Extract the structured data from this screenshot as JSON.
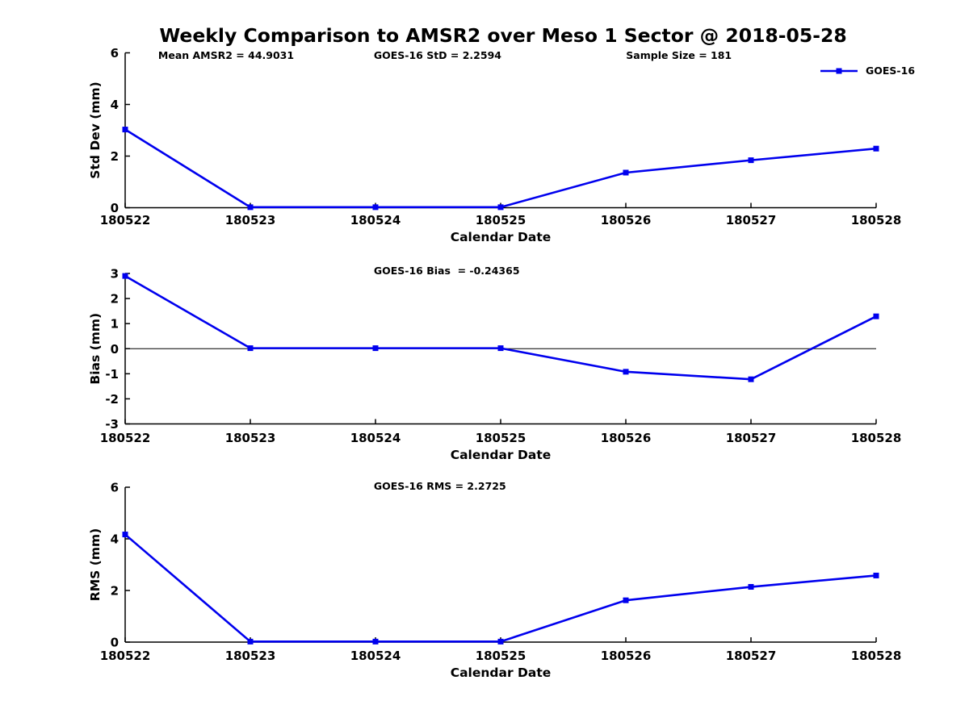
{
  "page": {
    "title": "Weekly Comparison to AMSR2 over Meso 1 Sector @ 2018-05-28",
    "background": "#ffffff"
  },
  "legend": {
    "label": "GOES-16"
  },
  "colors": {
    "series_blue": "#0000EE",
    "axis_black": "#000000",
    "text_black": "#000000",
    "zero_line_black": "#000000"
  },
  "chart_data": [
    {
      "type": "line",
      "title": "",
      "xlabel": "Calendar Date",
      "ylabel": "Std Dev (mm)",
      "categories": [
        "180522",
        "180523",
        "180524",
        "180525",
        "180526",
        "180527",
        "180528"
      ],
      "series": [
        {
          "name": "GOES-16",
          "values": [
            3.03,
            0.02,
            0.02,
            0.02,
            1.36,
            1.84,
            2.29
          ]
        }
      ],
      "ylim": [
        0,
        6
      ],
      "yticks": [
        0,
        2,
        4,
        6
      ],
      "annotations": [
        "Mean AMSR2 = 44.9031",
        "GOES-16 StD = 2.2594",
        "Sample Size = 181"
      ],
      "zero_line": false,
      "grid": false,
      "legend_position": "top-right-outside",
      "marker": "square"
    },
    {
      "type": "line",
      "title": "",
      "xlabel": "Calendar Date",
      "ylabel": "Bias (mm)",
      "categories": [
        "180522",
        "180523",
        "180524",
        "180525",
        "180526",
        "180527",
        "180528"
      ],
      "series": [
        {
          "name": "GOES-16",
          "values": [
            2.9,
            0.02,
            0.02,
            0.02,
            -0.92,
            -1.22,
            1.29
          ]
        }
      ],
      "ylim": [
        -3,
        3
      ],
      "yticks": [
        -3,
        -2,
        -1,
        0,
        1,
        2,
        3
      ],
      "annotations": [
        "GOES-16 Bias  = -0.24365"
      ],
      "zero_line": true,
      "grid": false,
      "marker": "square"
    },
    {
      "type": "line",
      "title": "",
      "xlabel": "Calendar Date",
      "ylabel": "RMS (mm)",
      "categories": [
        "180522",
        "180523",
        "180524",
        "180525",
        "180526",
        "180527",
        "180528"
      ],
      "series": [
        {
          "name": "GOES-16",
          "values": [
            4.17,
            0.02,
            0.02,
            0.02,
            1.62,
            2.14,
            2.58
          ]
        }
      ],
      "ylim": [
        0,
        6
      ],
      "yticks": [
        0,
        2,
        4,
        6
      ],
      "annotations": [
        "GOES-16 RMS = 2.2725"
      ],
      "zero_line": false,
      "grid": false,
      "marker": "square"
    }
  ]
}
